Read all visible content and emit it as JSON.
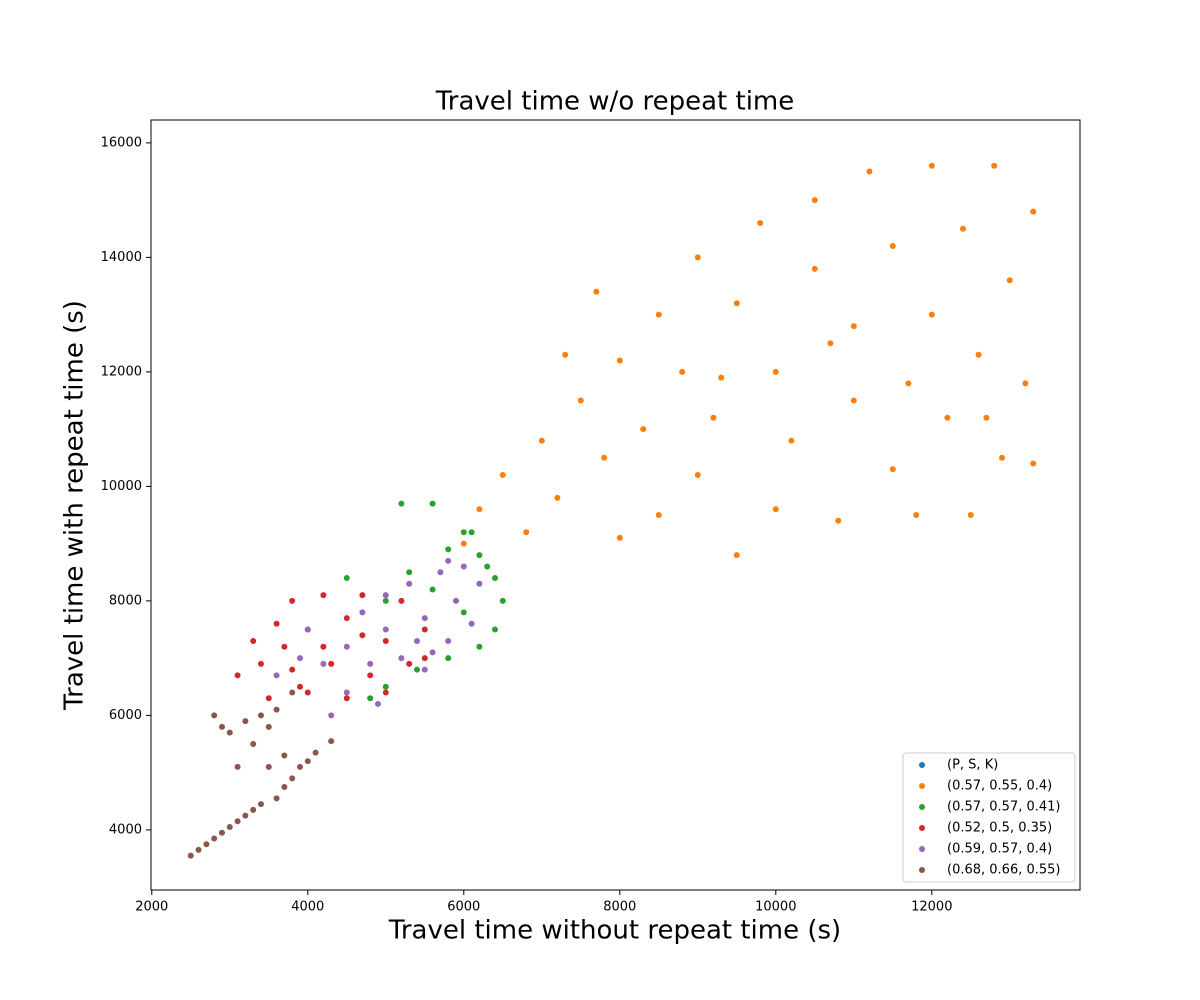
{
  "chart_data": {
    "type": "scatter",
    "title": "Travel time w/o repeat time",
    "x_label": "Travel time without repeat time (s)",
    "y_label": "Travel time with repeat time (s)",
    "xlim": [
      1990,
      13900
    ],
    "ylim": [
      2950,
      16400
    ],
    "xticks": [
      2000,
      4000,
      6000,
      8000,
      10000,
      12000
    ],
    "yticks": [
      4000,
      6000,
      8000,
      10000,
      12000,
      14000,
      16000
    ],
    "legend": "lower right",
    "series": [
      {
        "name": "(P, S, K)",
        "color": "#1f77b4",
        "x": [],
        "y": []
      },
      {
        "name": "(0.57, 0.55, 0.4)",
        "color": "#ff7f0e",
        "x": [
          6000,
          6200,
          6500,
          6800,
          7000,
          7200,
          7500,
          7800,
          8000,
          8000,
          8300,
          8500,
          8500,
          8800,
          9000,
          9000,
          9200,
          9500,
          9500,
          9800,
          10000,
          10000,
          10200,
          10500,
          10500,
          10800,
          11000,
          11000,
          11200,
          11500,
          11500,
          11800,
          12000,
          12000,
          12200,
          12400,
          12500,
          12600,
          12800,
          12900,
          13000,
          13200,
          13300,
          13300,
          7300,
          7700,
          9300,
          10700,
          11700,
          12700
        ],
        "y": [
          9000,
          9600,
          10200,
          9200,
          10800,
          9800,
          11500,
          10500,
          9100,
          12200,
          11000,
          9500,
          13000,
          12000,
          10200,
          14000,
          11200,
          8800,
          13200,
          14600,
          9600,
          12000,
          10800,
          13800,
          15000,
          9400,
          11500,
          12800,
          15500,
          10300,
          14200,
          9500,
          13000,
          15600,
          11200,
          14500,
          9500,
          12300,
          15600,
          10500,
          13600,
          11800,
          14800,
          10400,
          12300,
          13400,
          11900,
          12500,
          11800,
          11200
        ]
      },
      {
        "name": "(0.57, 0.57, 0.41)",
        "color": "#2ca02c",
        "x": [
          5200,
          5600,
          5300,
          5800,
          6000,
          6200,
          6400,
          6500,
          6400,
          6200,
          5800,
          5400,
          5000,
          4800,
          6000,
          5600,
          6300,
          6100,
          4500,
          5000
        ],
        "y": [
          9700,
          9700,
          8500,
          8900,
          9200,
          8800,
          8400,
          8000,
          7500,
          7200,
          7000,
          6800,
          6500,
          6300,
          7800,
          8200,
          8600,
          9200,
          8400,
          8000
        ]
      },
      {
        "name": "(0.52, 0.5, 0.35)",
        "color": "#d62728",
        "x": [
          3100,
          3300,
          3500,
          3600,
          3800,
          3800,
          4000,
          4000,
          4200,
          4300,
          4500,
          4500,
          4700,
          4800,
          5000,
          5000,
          5200,
          5300,
          5500,
          5500,
          3400,
          3700,
          4200,
          4700,
          3900
        ],
        "y": [
          6700,
          7300,
          6300,
          7600,
          8000,
          6800,
          6400,
          7500,
          8100,
          6900,
          6300,
          7700,
          8100,
          6700,
          7300,
          6400,
          8000,
          6900,
          7500,
          7000,
          6900,
          7200,
          7200,
          7400,
          6500
        ]
      },
      {
        "name": "(0.59, 0.57, 0.4)",
        "color": "#9467bd",
        "x": [
          3600,
          3900,
          4000,
          4300,
          4500,
          4500,
          4700,
          4800,
          5000,
          5000,
          5200,
          5300,
          5500,
          5500,
          5700,
          5800,
          5900,
          6000,
          6100,
          6200,
          4200,
          5400,
          4900,
          5800,
          5600
        ],
        "y": [
          6700,
          7000,
          7500,
          6000,
          6400,
          7200,
          7800,
          6900,
          7500,
          8100,
          7000,
          8300,
          7700,
          6800,
          8500,
          7300,
          8000,
          8600,
          7600,
          8300,
          6900,
          7300,
          6200,
          8700,
          7100
        ]
      },
      {
        "name": "(0.68, 0.66, 0.55)",
        "color": "#8c564b",
        "x": [
          2500,
          2600,
          2700,
          2800,
          2900,
          3000,
          3100,
          3200,
          3300,
          3400,
          3600,
          3700,
          3800,
          3900,
          4000,
          4100,
          4300,
          2800,
          2900,
          3000,
          3100,
          3200,
          3300,
          3400,
          3500,
          3600,
          3700,
          3800,
          3500
        ],
        "y": [
          3550,
          3650,
          3750,
          3850,
          3950,
          4050,
          4150,
          4250,
          4350,
          4450,
          4550,
          4750,
          4900,
          5100,
          5200,
          5350,
          5550,
          6000,
          5800,
          5700,
          5100,
          5900,
          5500,
          6000,
          5800,
          6100,
          5300,
          6400,
          5100
        ]
      }
    ]
  }
}
